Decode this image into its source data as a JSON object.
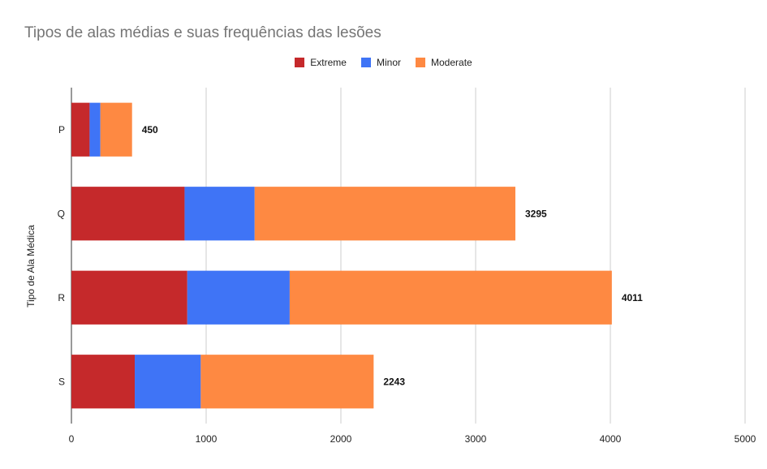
{
  "chart_data": {
    "type": "bar",
    "orientation": "horizontal",
    "stacked": true,
    "title": "Tipos de alas médias e suas frequências das lesões",
    "ylabel": "Tipo de Ala Médica",
    "xlabel": "",
    "categories": [
      "P",
      "Q",
      "R",
      "S"
    ],
    "series": [
      {
        "name": "Extreme",
        "color": "#c5292b",
        "values": [
          135,
          840,
          860,
          470
        ]
      },
      {
        "name": "Minor",
        "color": "#3f74f6",
        "values": [
          80,
          520,
          760,
          490
        ]
      },
      {
        "name": "Moderate",
        "color": "#fe8942",
        "values": [
          235,
          1935,
          2391,
          1283
        ]
      }
    ],
    "totals": [
      "450",
      "3295",
      "4011",
      "2243"
    ],
    "xticks": [
      "0",
      "1000",
      "2000",
      "3000",
      "4000",
      "5000"
    ],
    "xlim": [
      0,
      5000
    ],
    "grid": true,
    "legend_position": "top"
  }
}
